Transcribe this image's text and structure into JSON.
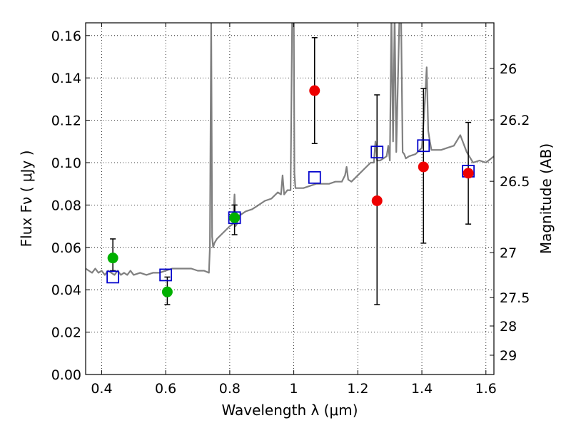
{
  "chart_data": {
    "type": "scatter",
    "xlabel": "Wavelength  λ (μm)",
    "ylabel": "Flux  Fν  ( μJy )",
    "ylabel_right": "Magnitude (AB)",
    "xlim": [
      0.35,
      1.625
    ],
    "ylim": [
      0.0,
      0.166
    ],
    "x_ticks": [
      0.4,
      0.6,
      0.8,
      1.0,
      1.2,
      1.4,
      1.6
    ],
    "x_tick_labels": [
      "0.4",
      "0.6",
      "0.8",
      "1",
      "1.2",
      "1.4",
      "1.6"
    ],
    "y_ticks": [
      0.0,
      0.02,
      0.04,
      0.06,
      0.08,
      0.1,
      0.12,
      0.14,
      0.16
    ],
    "y_tick_labels": [
      "0.00",
      "0.02",
      "0.04",
      "0.06",
      "0.08",
      "0.10",
      "0.12",
      "0.14",
      "0.16"
    ],
    "right_ticks": [
      {
        "label": "26",
        "flux": 0.1445
      },
      {
        "label": "26.2",
        "flux": 0.1202
      },
      {
        "label": "26.5",
        "flux": 0.0912
      },
      {
        "label": "27",
        "flux": 0.0575
      },
      {
        "label": "27.5",
        "flux": 0.0363
      },
      {
        "label": "28",
        "flux": 0.0229
      },
      {
        "label": "29",
        "flux": 0.0091
      }
    ],
    "grid": true,
    "model_spectrum": {
      "name": "SED model",
      "color": "#808080",
      "x": [
        0.35,
        0.36,
        0.37,
        0.38,
        0.39,
        0.4,
        0.41,
        0.42,
        0.43,
        0.44,
        0.45,
        0.46,
        0.47,
        0.48,
        0.49,
        0.5,
        0.52,
        0.54,
        0.56,
        0.58,
        0.6,
        0.62,
        0.64,
        0.66,
        0.68,
        0.7,
        0.72,
        0.735,
        0.738,
        0.742,
        0.745,
        0.748,
        0.752,
        0.76,
        0.78,
        0.8,
        0.81,
        0.815,
        0.818,
        0.822,
        0.83,
        0.85,
        0.87,
        0.89,
        0.91,
        0.93,
        0.95,
        0.96,
        0.965,
        0.97,
        0.975,
        0.98,
        0.99,
        0.995,
        1.0,
        1.002,
        1.005,
        1.01,
        1.03,
        1.05,
        1.07,
        1.09,
        1.11,
        1.13,
        1.15,
        1.16,
        1.165,
        1.17,
        1.18,
        1.2,
        1.22,
        1.24,
        1.25,
        1.255,
        1.26,
        1.27,
        1.28,
        1.29,
        1.295,
        1.3,
        1.305,
        1.31,
        1.315,
        1.32,
        1.33,
        1.335,
        1.34,
        1.345,
        1.35,
        1.36,
        1.38,
        1.4,
        1.41,
        1.415,
        1.42,
        1.425,
        1.43,
        1.44,
        1.46,
        1.48,
        1.5,
        1.52,
        1.54,
        1.56,
        1.58,
        1.6,
        1.625
      ],
      "y": [
        0.05,
        0.049,
        0.048,
        0.05,
        0.048,
        0.049,
        0.047,
        0.049,
        0.048,
        0.047,
        0.049,
        0.047,
        0.048,
        0.047,
        0.049,
        0.047,
        0.048,
        0.047,
        0.048,
        0.048,
        0.049,
        0.05,
        0.05,
        0.05,
        0.05,
        0.049,
        0.049,
        0.048,
        0.06,
        0.17,
        0.065,
        0.06,
        0.062,
        0.064,
        0.067,
        0.07,
        0.071,
        0.085,
        0.07,
        0.071,
        0.075,
        0.077,
        0.078,
        0.08,
        0.082,
        0.083,
        0.086,
        0.085,
        0.094,
        0.085,
        0.086,
        0.087,
        0.087,
        0.17,
        0.17,
        0.095,
        0.088,
        0.088,
        0.088,
        0.089,
        0.09,
        0.09,
        0.09,
        0.091,
        0.091,
        0.094,
        0.098,
        0.092,
        0.091,
        0.094,
        0.097,
        0.1,
        0.1,
        0.11,
        0.101,
        0.101,
        0.102,
        0.103,
        0.108,
        0.101,
        0.17,
        0.11,
        0.17,
        0.105,
        0.17,
        0.17,
        0.105,
        0.104,
        0.102,
        0.103,
        0.104,
        0.107,
        0.13,
        0.145,
        0.115,
        0.11,
        0.106,
        0.106,
        0.106,
        0.107,
        0.108,
        0.113,
        0.105,
        0.1,
        0.101,
        0.1,
        0.103
      ]
    },
    "series": [
      {
        "name": "green points",
        "color": "#00b000",
        "marker": "circle",
        "points": [
          {
            "x": 0.435,
            "y": 0.055,
            "err_lo": 0.049,
            "err_hi": 0.064
          },
          {
            "x": 0.605,
            "y": 0.039,
            "err_lo": 0.033,
            "err_hi": 0.046
          },
          {
            "x": 0.815,
            "y": 0.074,
            "err_lo": 0.066,
            "err_hi": 0.08
          }
        ]
      },
      {
        "name": "red points",
        "color": "#ee0000",
        "marker": "circle",
        "points": [
          {
            "x": 1.065,
            "y": 0.134,
            "err_lo": 0.109,
            "err_hi": 0.159
          },
          {
            "x": 1.26,
            "y": 0.082,
            "err_lo": 0.033,
            "err_hi": 0.132
          },
          {
            "x": 1.405,
            "y": 0.098,
            "err_lo": 0.062,
            "err_hi": 0.135
          },
          {
            "x": 1.545,
            "y": 0.095,
            "err_lo": 0.071,
            "err_hi": 0.119
          }
        ]
      },
      {
        "name": "model photometry",
        "color": "#0000cc",
        "marker": "open-square",
        "points": [
          {
            "x": 0.435,
            "y": 0.046
          },
          {
            "x": 0.6,
            "y": 0.047
          },
          {
            "x": 0.815,
            "y": 0.074
          },
          {
            "x": 1.065,
            "y": 0.093
          },
          {
            "x": 1.26,
            "y": 0.105
          },
          {
            "x": 1.405,
            "y": 0.108
          },
          {
            "x": 1.545,
            "y": 0.096
          }
        ]
      }
    ]
  }
}
